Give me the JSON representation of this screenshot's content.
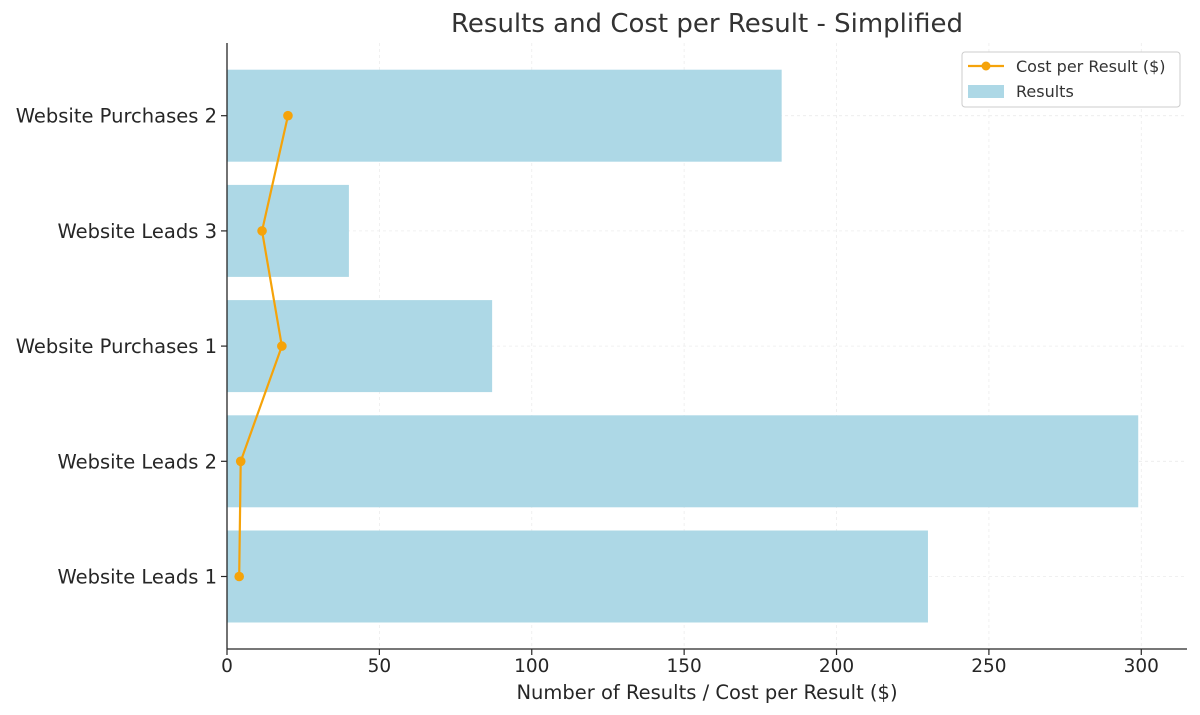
{
  "chart_data": {
    "type": "bar",
    "orientation": "horizontal",
    "title": "Results and Cost per Result - Simplified",
    "xlabel": "Number of Results / Cost per Result ($)",
    "ylabel": "",
    "xlim": [
      0,
      315
    ],
    "xticks": [
      0,
      50,
      100,
      150,
      200,
      250,
      300
    ],
    "categories": [
      "Website Leads 1",
      "Website Leads 2",
      "Website Purchases 1",
      "Website Leads 3",
      "Website Purchases 2"
    ],
    "series": [
      {
        "name": "Results",
        "type": "bar",
        "color": "#add8e6",
        "values": [
          230,
          299,
          87,
          40,
          182
        ]
      },
      {
        "name": "Cost per Result ($)",
        "type": "line",
        "marker": "circle",
        "color": "#f5a30a",
        "values": [
          4,
          4.5,
          18,
          11.5,
          20
        ]
      }
    ],
    "grid": true,
    "legend_position": "top-right"
  }
}
